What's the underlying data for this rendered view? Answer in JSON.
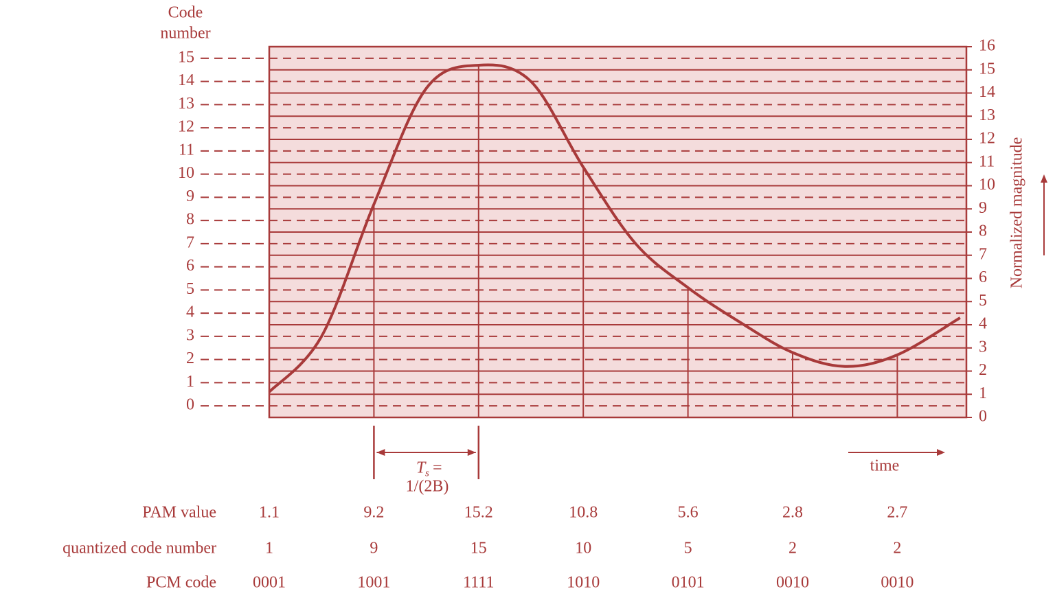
{
  "chart_data": {
    "type": "line",
    "y_label": [
      "Code",
      "number"
    ],
    "y2_label": "Normalized magnitude",
    "x_label": "time",
    "annotation": {
      "symbol": "T",
      "subscript": "s",
      "equals": "=",
      "formula": "1/(2B)"
    },
    "color": "#a83a3a",
    "background": "#f4dcdc",
    "xlim": [
      0,
      6.66
    ],
    "ylim": [
      -0.5,
      15.5
    ],
    "yticks": [
      0,
      1,
      2,
      3,
      4,
      5,
      6,
      7,
      8,
      9,
      10,
      11,
      12,
      13,
      14,
      15
    ],
    "y2lim": [
      0,
      16
    ],
    "y2ticks": [
      0,
      1,
      2,
      3,
      4,
      5,
      6,
      7,
      8,
      9,
      10,
      11,
      12,
      13,
      14,
      15,
      16
    ],
    "grid": true,
    "curve": {
      "axis": "y2",
      "x": [
        0,
        0.5,
        1,
        1.5,
        2,
        2.5,
        3,
        3.5,
        4,
        4.5,
        5,
        5.5,
        6,
        6.6
      ],
      "values": [
        1.1,
        3.5,
        9.2,
        14.2,
        15.2,
        14.5,
        10.8,
        7.5,
        5.6,
        4.1,
        2.8,
        2.2,
        2.7,
        4.3
      ]
    },
    "samples": {
      "axis": "y2",
      "x": [
        0,
        1,
        2,
        3,
        4,
        5,
        6
      ],
      "values": [
        1.1,
        9.2,
        15.2,
        10.8,
        5.6,
        2.8,
        2.7
      ]
    },
    "table": {
      "row_labels": [
        "PAM value",
        "quantized code number",
        "PCM code"
      ],
      "quantized": [
        1,
        9,
        15,
        10,
        5,
        2,
        2
      ],
      "pcm": [
        "0001",
        "1001",
        "1111",
        "1010",
        "0101",
        "0010",
        "0010"
      ]
    }
  }
}
